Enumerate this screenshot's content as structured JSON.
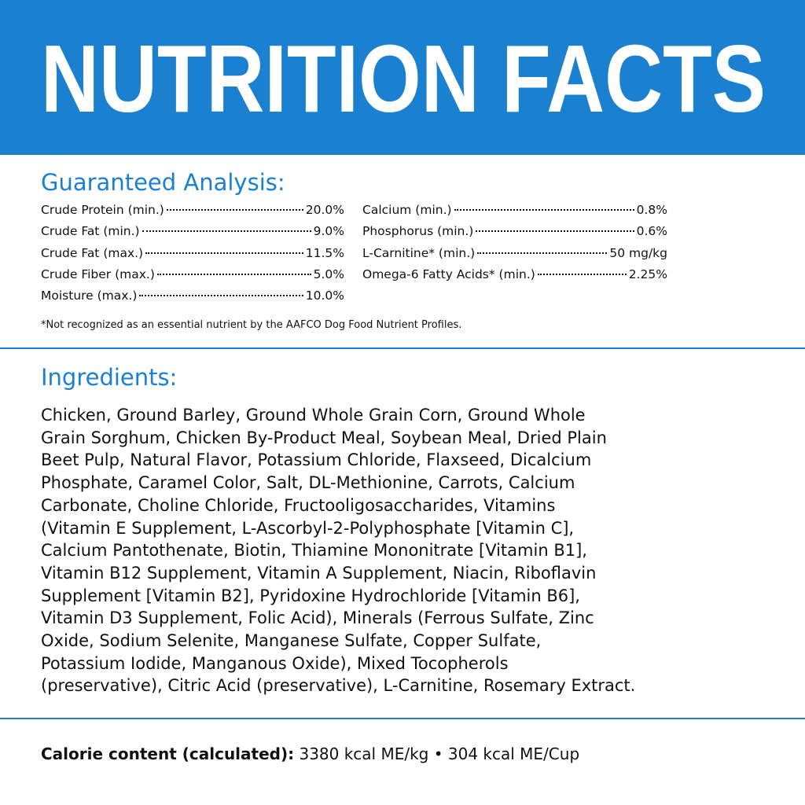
{
  "header": {
    "title": "NUTRITION FACTS"
  },
  "guaranteed_analysis": {
    "heading": "Guaranteed Analysis:",
    "left": [
      {
        "label": "Crude Protein (min.)",
        "value": "20.0%"
      },
      {
        "label": "Crude Fat (min.)",
        "value": "9.0%"
      },
      {
        "label": "Crude Fat (max.)",
        "value": "11.5%"
      },
      {
        "label": "Crude Fiber (max.)",
        "value": "5.0%"
      },
      {
        "label": "Moisture (max.)",
        "value": "10.0%"
      }
    ],
    "right": [
      {
        "label": "Calcium (min.)",
        "value": "0.8%"
      },
      {
        "label": "Phosphorus (min.)",
        "value": "0.6%"
      },
      {
        "label": "L-Carnitine* (min.)",
        "value": "50 mg/kg"
      },
      {
        "label": "Omega-6 Fatty Acids* (min.)",
        "value": "2.25%"
      }
    ],
    "footnote": "*Not recognized as an essential nutrient by the AAFCO Dog Food Nutrient Profiles."
  },
  "ingredients": {
    "heading": "Ingredients:",
    "lines": [
      "Chicken, Ground Barley, Ground Whole Grain Corn, Ground Whole",
      "Grain Sorghum, Chicken By-Product Meal, Soybean Meal, Dried Plain",
      "Beet Pulp, Natural Flavor, Potassium Chloride, Flaxseed, Dicalcium",
      "Phosphate, Caramel Color, Salt, DL-Methionine, Carrots, Calcium",
      "Carbonate, Choline Chloride, Fructooligosaccharides, Vitamins",
      "(Vitamin E Supplement, L-Ascorbyl-2-Polyphosphate [Vitamin C],",
      "Calcium Pantothenate, Biotin, Thiamine Mononitrate [Vitamin B1],",
      "Vitamin B12 Supplement, Vitamin A Supplement, Niacin, Riboflavin",
      "Supplement [Vitamin B2], Pyridoxine Hydrochloride [Vitamin B6],",
      "Vitamin D3 Supplement, Folic Acid), Minerals (Ferrous Sulfate, Zinc",
      "Oxide, Sodium Selenite, Manganese Sulfate, Copper Sulfate,",
      "Potassium Iodide, Manganous Oxide), Mixed Tocopherols",
      "(preservative), Citric Acid (preservative), L-Carnitine, Rosemary Extract."
    ]
  },
  "calorie": {
    "label": "Calorie content (calculated):",
    "value": "3380 kcal ME/kg • 304 kcal ME/Cup"
  }
}
